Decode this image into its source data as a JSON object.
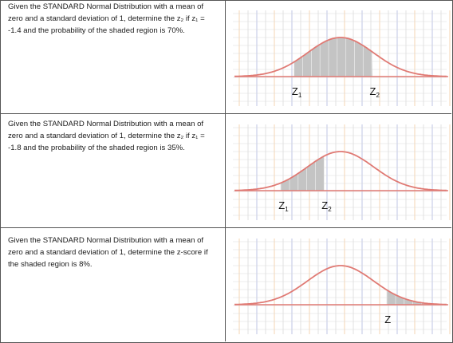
{
  "problems": [
    {
      "text": "Given the STANDARD Normal Distribution with a mean of zero and a standard deviation of 1, determine the z₂ if z₁ = -1.4 and the probability of the shaded region is 70%.",
      "shade_from_z": -1.4,
      "shade_to_z": 0.95,
      "labels": [
        {
          "z": -1.4,
          "text": "Z",
          "sub": "1"
        },
        {
          "z": 0.95,
          "text": "Z",
          "sub": "2"
        }
      ]
    },
    {
      "text": "Given the STANDARD Normal Distribution with a mean of zero and a standard deviation of 1, determine the z₂ if z₁ = -1.8 and the probability of the shaded region is 35%.",
      "shade_from_z": -1.8,
      "shade_to_z": -0.5,
      "labels": [
        {
          "z": -1.8,
          "text": "Z",
          "sub": "1"
        },
        {
          "z": -0.5,
          "text": "Z",
          "sub": "2"
        }
      ]
    },
    {
      "text": "Given the STANDARD Normal Distribution with a mean of zero and a standard deviation of 1, determine the z-score if the shaded region is 8%.",
      "shade_from_z": 1.4,
      "shade_to_z": 3.0,
      "labels": [
        {
          "z": 1.4,
          "text": "Z",
          "sub": ""
        }
      ]
    }
  ],
  "colors": {
    "curve": "#e07a74",
    "shade": "#c4c4c4",
    "grid_blue": "#aab4dc",
    "grid_orange": "#f2c79a",
    "grid_light": "#d9d9d9",
    "axis": "#e07a74"
  }
}
